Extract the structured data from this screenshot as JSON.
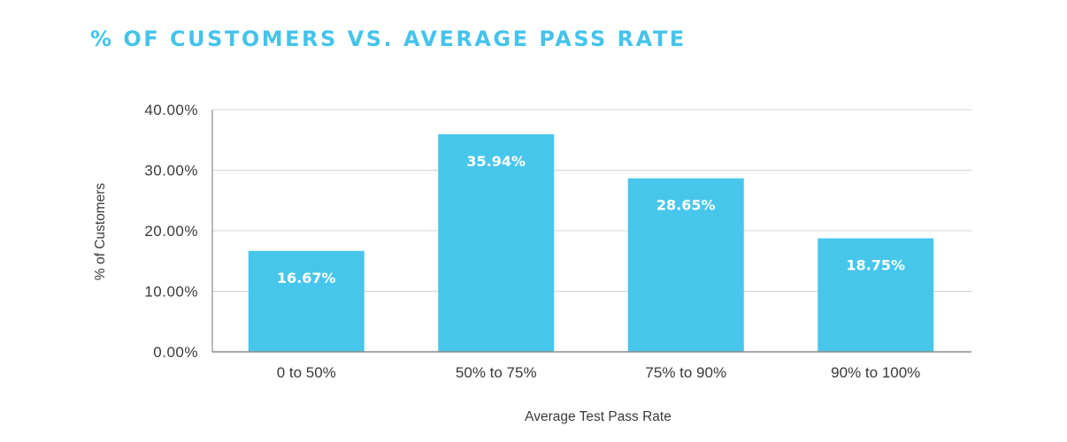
{
  "chart_data": {
    "type": "bar",
    "title": "% OF CUSTOMERS VS. AVERAGE PASS RATE",
    "xlabel": "Average Test Pass Rate",
    "ylabel": "% of Customers",
    "categories": [
      "0 to 50%",
      "50% to 75%",
      "75% to 90%",
      "90% to 100%"
    ],
    "values": [
      16.67,
      35.94,
      28.65,
      18.75
    ],
    "value_labels": [
      "16.67%",
      "35.94%",
      "28.65%",
      "18.75%"
    ],
    "ylim": [
      0,
      40
    ],
    "yticks": [
      0,
      10,
      20,
      30,
      40
    ],
    "ytick_labels": [
      "0.00%",
      "10.00%",
      "20.00%",
      "30.00%",
      "40.00%"
    ],
    "grid": true,
    "legend": "none",
    "bar_color": "#47c6ec",
    "title_color": "#45c3ea"
  }
}
